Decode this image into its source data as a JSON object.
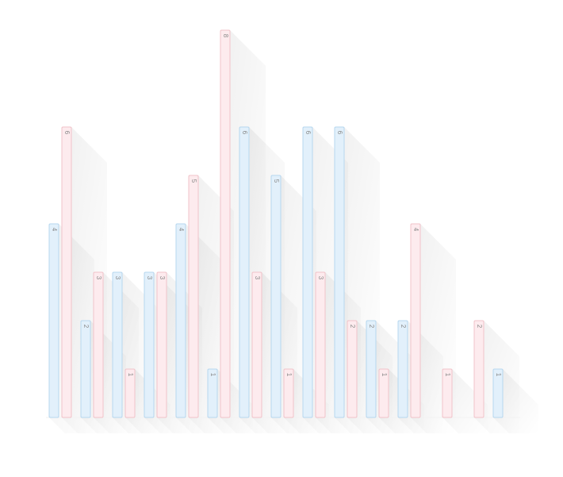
{
  "chart_data": {
    "type": "bar",
    "categories": [
      null,
      null,
      null,
      null,
      null,
      null,
      null,
      null,
      null,
      null,
      null,
      null,
      null,
      null,
      null
    ],
    "series": [
      {
        "color": "#e2f0fb",
        "values": [
          4,
          2,
          3,
          3,
          4,
          1,
          6,
          5,
          6,
          6,
          2,
          2,
          null,
          null,
          1
        ]
      },
      {
        "color": "#fdebee",
        "values": [
          6,
          3,
          1,
          3,
          5,
          8,
          3,
          1,
          3,
          2,
          1,
          4,
          1,
          2,
          null
        ]
      }
    ],
    "ylim": [
      0,
      8
    ]
  }
}
